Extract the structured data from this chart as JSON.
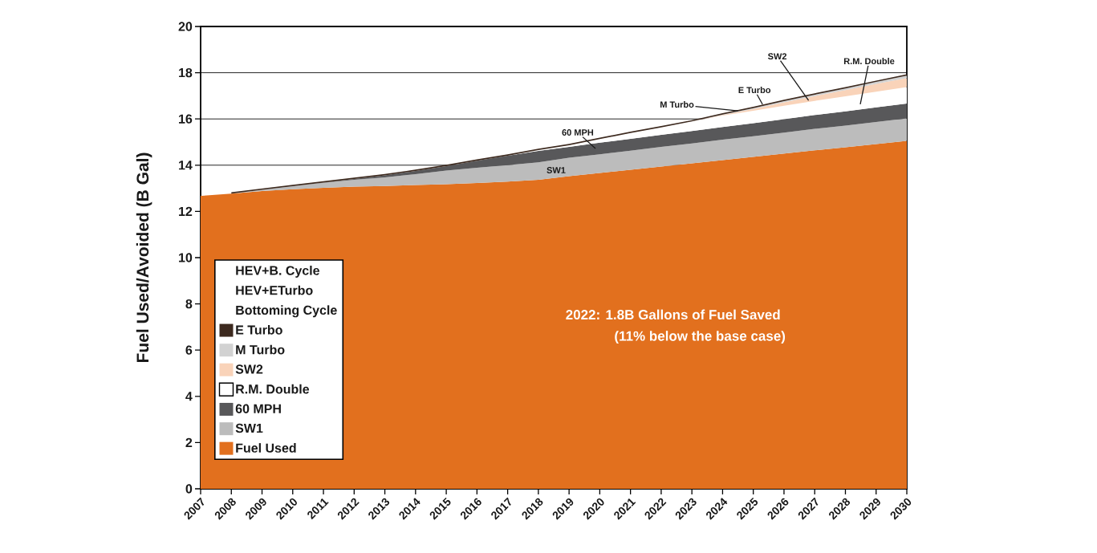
{
  "chart_data": {
    "type": "area",
    "stacked": true,
    "ylabel": "Fuel Used/Avoided (B Gal)",
    "x": [
      2007,
      2008,
      2009,
      2010,
      2011,
      2012,
      2013,
      2014,
      2015,
      2016,
      2017,
      2018,
      2019,
      2020,
      2021,
      2022,
      2023,
      2024,
      2025,
      2026,
      2027,
      2028,
      2029,
      2030
    ],
    "xlim": [
      2007,
      2030
    ],
    "xticks": [
      2007,
      2008,
      2009,
      2010,
      2011,
      2012,
      2013,
      2014,
      2015,
      2016,
      2017,
      2018,
      2019,
      2020,
      2021,
      2022,
      2023,
      2024,
      2025,
      2026,
      2027,
      2028,
      2029,
      2030
    ],
    "ylim": [
      0,
      20
    ],
    "yticks": [
      0,
      2,
      4,
      6,
      8,
      10,
      12,
      14,
      16,
      18,
      20
    ],
    "grid": "y",
    "legend": "bottom left",
    "series": [
      {
        "name": "Fuel Used",
        "color": "#e2701e",
        "values": [
          12.67,
          12.77,
          12.88,
          12.96,
          13.02,
          13.07,
          13.1,
          13.14,
          13.18,
          13.23,
          13.29,
          13.37,
          13.52,
          13.66,
          13.8,
          13.94,
          14.08,
          14.22,
          14.36,
          14.5,
          14.64,
          14.77,
          14.91,
          15.05
        ]
      },
      {
        "name": "SW1",
        "color": "#bcbcbc",
        "values": [
          null,
          0,
          0.05,
          0.13,
          0.22,
          0.3,
          0.37,
          0.47,
          0.59,
          0.66,
          0.71,
          0.75,
          0.8,
          0.81,
          0.83,
          0.85,
          0.86,
          0.88,
          0.89,
          0.91,
          0.93,
          0.94,
          0.96,
          0.97
        ]
      },
      {
        "name": "60 MPH",
        "color": "#58585a",
        "values": [
          null,
          null,
          null,
          0,
          0.01,
          0.03,
          0.09,
          0.14,
          0.19,
          0.3,
          0.41,
          0.5,
          0.47,
          0.5,
          0.51,
          0.52,
          0.54,
          0.55,
          0.57,
          0.58,
          0.6,
          0.62,
          0.63,
          0.65
        ]
      },
      {
        "name": "R.M. Double",
        "color": "#ffffff",
        "values": [
          null,
          null,
          null,
          null,
          null,
          null,
          null,
          null,
          null,
          null,
          0,
          0.03,
          0.07,
          0.16,
          0.25,
          0.32,
          0.41,
          0.5,
          0.53,
          0.58,
          0.61,
          0.65,
          0.68,
          0.71
        ]
      },
      {
        "name": "SW2",
        "color": "#f9d3b9",
        "values": [
          null,
          null,
          null,
          null,
          null,
          null,
          null,
          null,
          null,
          null,
          null,
          null,
          null,
          null,
          null,
          null,
          0,
          0.02,
          0.08,
          0.15,
          0.21,
          0.27,
          0.34,
          0.39
        ]
      },
      {
        "name": "M Turbo",
        "color": "#d2d2d2",
        "values": [
          null,
          null,
          null,
          null,
          null,
          null,
          null,
          null,
          null,
          null,
          null,
          null,
          null,
          null,
          null,
          null,
          0,
          0.02,
          0.04,
          0.05,
          0.06,
          0.07,
          0.08,
          0.1
        ]
      },
      {
        "name": "E Turbo",
        "color": "#3d2a1f",
        "values": [
          null,
          0.06,
          0.06,
          0.06,
          0.06,
          0.06,
          0.06,
          0.06,
          0.06,
          0.06,
          0.06,
          0.06,
          0.06,
          0.06,
          0.06,
          0.06,
          0.06,
          0.06,
          0.06,
          0.06,
          0.06,
          0.06,
          0.06,
          0.06
        ]
      },
      {
        "name": "Bottoming Cycle",
        "values": [
          null,
          null,
          null,
          null,
          null,
          null,
          null,
          null,
          null,
          null,
          null,
          null,
          null,
          null,
          null,
          null,
          null,
          null,
          null,
          null,
          null,
          null,
          null,
          null
        ]
      },
      {
        "name": "HEV+ETurbo",
        "values": [
          null,
          null,
          null,
          null,
          null,
          null,
          null,
          null,
          null,
          null,
          null,
          null,
          null,
          null,
          null,
          null,
          null,
          null,
          null,
          null,
          null,
          null,
          null,
          null
        ]
      },
      {
        "name": "HEV+B. Cycle",
        "values": [
          null,
          null,
          null,
          null,
          null,
          null,
          null,
          null,
          null,
          null,
          null,
          null,
          null,
          null,
          null,
          null,
          null,
          null,
          null,
          null,
          null,
          null,
          null,
          null
        ]
      }
    ],
    "annotations": [
      "SW1",
      "60 MPH",
      {
        "text": "M Turbo",
        "x": 2024.5,
        "y": 16.35
      },
      {
        "text": "E Turbo",
        "x": 2025.3,
        "y": 16.63
      },
      {
        "text": "SW2",
        "x": 2026.8,
        "y": 16.8
      },
      "R.M. Double",
      "2022: 1.8B Gallons of Fuel Saved",
      "(11% below the base case)"
    ]
  }
}
